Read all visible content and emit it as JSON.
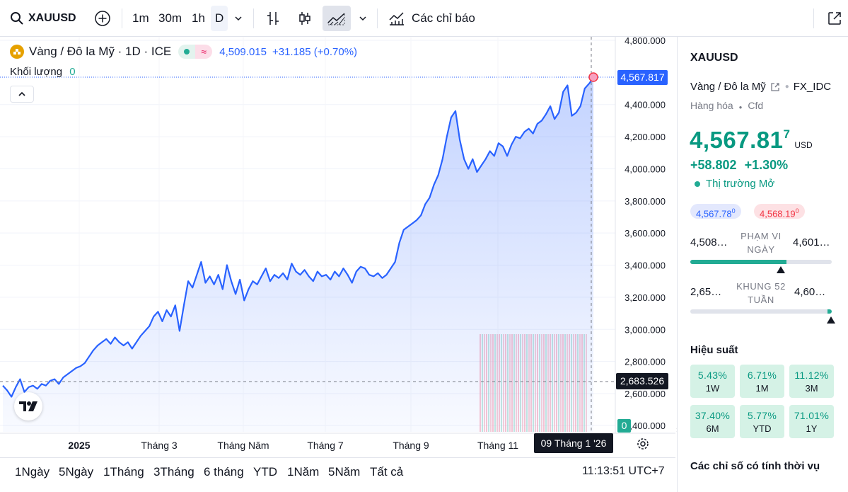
{
  "toolbar": {
    "symbol": "XAUUSD",
    "intervals": [
      "1m",
      "30m",
      "1h",
      "D"
    ],
    "indicators_label": "Các chỉ báo"
  },
  "legend": {
    "title": "Vàng / Đô la Mỹ · 1D · ICE",
    "price": "4,509.015",
    "change": "+31.185 (+0.70%)",
    "volume_label": "Khối lượng",
    "volume_value": "0"
  },
  "chart_data": {
    "type": "area",
    "x_labels": [
      "2025",
      "Tháng 3",
      "Tháng Năm",
      "Tháng 7",
      "Tháng 9",
      "Tháng 11"
    ],
    "y_ticks": [
      "4,800.000",
      "4,400.000",
      "4,200.000",
      "4,000.000",
      "3,800.000",
      "3,600.000",
      "3,400.000",
      "3,200.000",
      "3,000.000",
      "2,800.000",
      "2,600.000",
      "2,400.000"
    ],
    "ylim": [
      2400,
      4800
    ],
    "current_price_label": "4,567.817",
    "crosshair_price_label": "2,683.526",
    "volume_axis_label": "0",
    "crosshair_date": "09 Tháng 1 '26",
    "color": "#2962ff",
    "values": [
      2650,
      2620,
      2580,
      2640,
      2690,
      2610,
      2640,
      2650,
      2630,
      2660,
      2650,
      2680,
      2690,
      2660,
      2700,
      2720,
      2740,
      2760,
      2770,
      2790,
      2830,
      2870,
      2900,
      2920,
      2940,
      2910,
      2950,
      2920,
      2900,
      2920,
      2880,
      2920,
      2960,
      2990,
      3020,
      3080,
      3110,
      3050,
      3120,
      3080,
      3150,
      2990,
      3150,
      3300,
      3260,
      3340,
      3420,
      3290,
      3330,
      3280,
      3340,
      3250,
      3400,
      3300,
      3220,
      3310,
      3180,
      3250,
      3300,
      3280,
      3330,
      3380,
      3300,
      3340,
      3320,
      3350,
      3310,
      3410,
      3360,
      3340,
      3370,
      3330,
      3300,
      3360,
      3330,
      3340,
      3310,
      3360,
      3330,
      3380,
      3340,
      3290,
      3360,
      3390,
      3380,
      3340,
      3330,
      3350,
      3320,
      3340,
      3380,
      3420,
      3540,
      3620,
      3640,
      3660,
      3680,
      3710,
      3780,
      3820,
      3900,
      3960,
      4060,
      4200,
      4320,
      4360,
      4180,
      4060,
      4000,
      4060,
      3980,
      4020,
      4060,
      4110,
      4080,
      4160,
      4140,
      4080,
      4150,
      4200,
      4190,
      4230,
      4250,
      4220,
      4280,
      4300,
      4340,
      4390,
      4310,
      4350,
      4480,
      4520,
      4330,
      4350,
      4390,
      4500,
      4530,
      4568
    ]
  },
  "bottom": {
    "ranges": [
      "1Ngày",
      "5Ngày",
      "1Tháng",
      "3Tháng",
      "6 tháng",
      "YTD",
      "1Năm",
      "5Năm",
      "Tất cả"
    ],
    "clock": "11:13:51 UTC+7"
  },
  "panel": {
    "symbol": "XAUUSD",
    "name": "Vàng / Đô la Mỹ",
    "source": "FX_IDC",
    "type": "Hàng hóa",
    "subtype": "Cfd",
    "price_main": "4,567.81",
    "price_sup": "7",
    "currency": "USD",
    "change": "+58.802",
    "change_pct": "+1.30%",
    "market_status": "Thị trường Mở",
    "bid": "4,567.78",
    "bid_sup": "0",
    "ask": "4,568.19",
    "ask_sup": "0",
    "day_low": "4,508…",
    "day_label": "PHẠM VI NGÀY",
    "day_high": "4,601…",
    "year_low": "2,65…",
    "year_label": "KHUNG 52 TUẦN",
    "year_high": "4,60…",
    "day_range_fill": 0.68,
    "year_range_fill": 0.97,
    "performance_title": "Hiệu suất",
    "performance": [
      {
        "value": "5.43%",
        "label": "1W"
      },
      {
        "value": "6.71%",
        "label": "1M"
      },
      {
        "value": "11.12%",
        "label": "3M"
      },
      {
        "value": "37.40%",
        "label": "6M"
      },
      {
        "value": "5.77%",
        "label": "YTD"
      },
      {
        "value": "71.01%",
        "label": "1Y"
      }
    ],
    "seasonal_title": "Các chỉ số có tính thời vụ",
    "accent_green": "#089981",
    "accent_red": "#f23645"
  }
}
